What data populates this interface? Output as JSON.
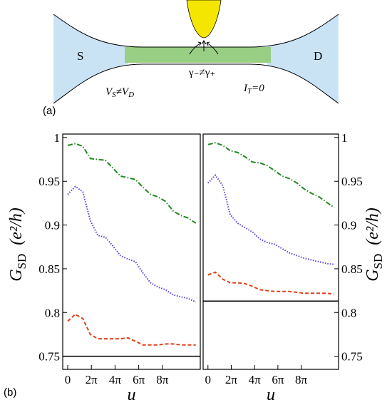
{
  "diagram": {
    "label": "(a)",
    "source": "S",
    "drain": "D",
    "gamma": "γ₋≠γ₊",
    "voltage": [
      "V",
      "S",
      "≠V",
      "D"
    ],
    "current": [
      "I",
      "T",
      "=0"
    ]
  },
  "panel_label": "(b)",
  "chart_data": [
    {
      "type": "line",
      "xlabel": "u",
      "ylabel": {
        "main": "G",
        "sub": "SD",
        "unit": "(e²/h)"
      },
      "yaxis_side": "left",
      "xlim": [
        -1.33,
        35.2
      ],
      "ylim": [
        0.735,
        1.004
      ],
      "xticks": [
        0,
        {
          "value": 6.2832,
          "label": "2π"
        },
        {
          "value": 12.566,
          "label": "4π"
        },
        {
          "value": 18.85,
          "label": "6π"
        },
        {
          "value": 25.133,
          "label": "8π"
        }
      ],
      "yticks": [
        0.75,
        0.8,
        0.85,
        0.9,
        0.95,
        1
      ],
      "x": [
        0,
        2,
        4,
        6,
        8,
        10,
        12,
        14,
        16,
        18,
        20,
        22,
        24,
        26,
        28,
        30,
        32,
        34
      ],
      "series": [
        {
          "color": "#1f8a1f",
          "style": "dashdot",
          "values": [
            0.991,
            0.993,
            0.99,
            0.976,
            0.975,
            0.974,
            0.965,
            0.956,
            0.954,
            0.952,
            0.943,
            0.935,
            0.932,
            0.927,
            0.916,
            0.911,
            0.908,
            0.902
          ]
        },
        {
          "color": "#5a3de0",
          "style": "dotted",
          "values": [
            0.935,
            0.944,
            0.938,
            0.905,
            0.888,
            0.886,
            0.876,
            0.865,
            0.861,
            0.858,
            0.845,
            0.834,
            0.829,
            0.826,
            0.82,
            0.818,
            0.816,
            0.812
          ]
        },
        {
          "color": "#e0401a",
          "style": "dashed",
          "values": [
            0.79,
            0.798,
            0.793,
            0.775,
            0.77,
            0.77,
            0.77,
            0.77,
            0.771,
            0.767,
            0.763,
            0.763,
            0.763,
            0.764,
            0.764,
            0.763,
            0.763,
            0.763
          ]
        }
      ],
      "reference_line": 0.75,
      "reference_color": "#000000"
    },
    {
      "type": "line",
      "xlabel": "u",
      "ylabel": {
        "main": "G",
        "sub": "SD",
        "unit": "(e²/h)"
      },
      "yaxis_side": "right",
      "xlim": [
        -1.3,
        35.2
      ],
      "ylim": [
        0.735,
        1.004
      ],
      "xticks": [
        0,
        {
          "value": 6.2832,
          "label": "2π"
        },
        {
          "value": 12.566,
          "label": "4π"
        },
        {
          "value": 18.85,
          "label": "6π"
        },
        {
          "value": 25.133,
          "label": "8π"
        }
      ],
      "yticks": [
        0.75,
        0.8,
        0.85,
        0.9,
        0.95,
        1
      ],
      "x": [
        0,
        2,
        4,
        6,
        8,
        10,
        12,
        14,
        16,
        18,
        20,
        22,
        24,
        26,
        28,
        30,
        32,
        34
      ],
      "series": [
        {
          "color": "#1f8a1f",
          "style": "dashdot",
          "values": [
            0.992,
            0.994,
            0.991,
            0.985,
            0.983,
            0.978,
            0.972,
            0.971,
            0.968,
            0.962,
            0.956,
            0.953,
            0.948,
            0.941,
            0.936,
            0.932,
            0.926,
            0.92
          ]
        },
        {
          "color": "#5a3de0",
          "style": "dotted",
          "values": [
            0.948,
            0.957,
            0.945,
            0.912,
            0.902,
            0.897,
            0.892,
            0.884,
            0.88,
            0.878,
            0.873,
            0.868,
            0.865,
            0.862,
            0.86,
            0.858,
            0.856,
            0.855
          ]
        },
        {
          "color": "#e0401a",
          "style": "dashed",
          "values": [
            0.843,
            0.846,
            0.838,
            0.834,
            0.834,
            0.833,
            0.83,
            0.826,
            0.825,
            0.824,
            0.824,
            0.824,
            0.823,
            0.822,
            0.822,
            0.822,
            0.822,
            0.821
          ]
        }
      ],
      "reference_line": 0.813,
      "reference_color": "#000000"
    }
  ]
}
